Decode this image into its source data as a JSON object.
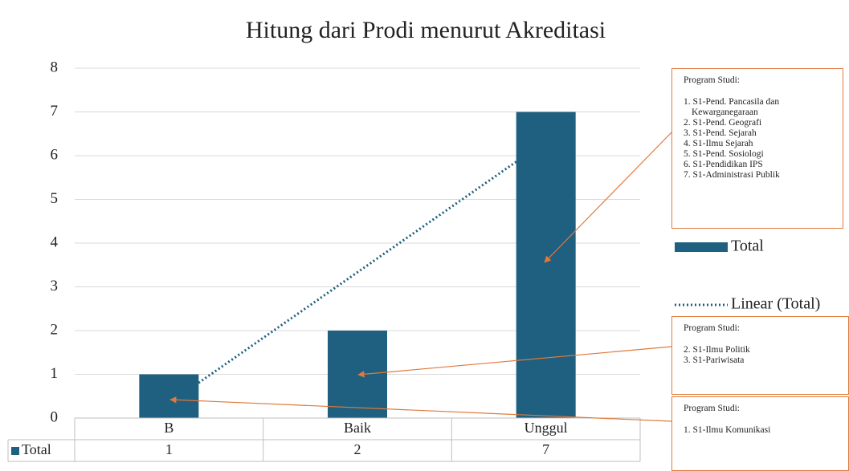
{
  "chart_data": {
    "type": "bar",
    "title": "Hitung dari Prodi menurut Akreditasi",
    "categories": [
      "B",
      "Baik",
      "Unggul"
    ],
    "series": [
      {
        "name": "Total",
        "color": "#1f5f7f",
        "values": [
          1,
          2,
          7
        ]
      }
    ],
    "trendline": {
      "name": "Linear (Total)",
      "color": "#1f5f7f"
    },
    "ylim": [
      0,
      8
    ],
    "yticks": [
      0,
      1,
      2,
      3,
      4,
      5,
      6,
      7,
      8
    ],
    "grid": true,
    "annotations": [
      {
        "title": "Program Studi:",
        "items": [
          "1. S1-Pend. Pancasila dan Kewarganegaraan",
          "2. S1-Pend. Geografi",
          "3. S1-Pend. Sejarah",
          "4. S1-Ilmu Sejarah",
          "5. S1-Pend. Sosiologi",
          "6. S1-Pendidikan IPS",
          "7. S1-Administrasi Publik"
        ]
      },
      {
        "title": "Program Studi:",
        "items": [
          "2. S1-Ilmu Politik",
          "3. S1-Pariwisata"
        ]
      },
      {
        "title": "Program Studi:",
        "items": [
          "1. S1-Ilmu Komunikasi"
        ]
      }
    ]
  }
}
